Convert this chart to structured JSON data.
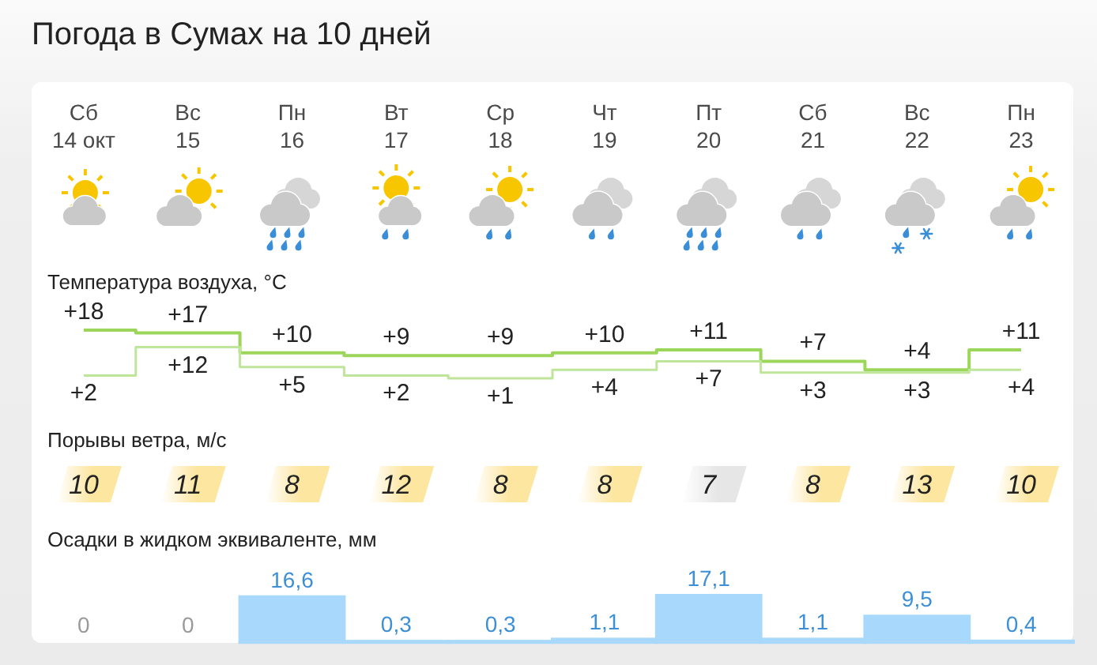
{
  "chart_data": [
    {
      "type": "step",
      "title": "Погода в Сумах на 10 дней",
      "subtitle": "Температура воздуха, °C",
      "categories": [
        "Сб\n14 окт",
        "Вс\n15",
        "Пн\n16",
        "Вт\n17",
        "Ср\n18",
        "Чт\n19",
        "Пт\n20",
        "Сб\n21",
        "Вс\n22",
        "Пн\n23"
      ],
      "tick_labels": "x",
      "series": [
        {
          "color": "#9bd65a",
          "values": [
            18,
            17,
            10,
            9,
            9,
            10,
            11,
            7,
            4,
            11
          ],
          "value_labels": [
            "+18",
            "+17",
            "+10",
            "+9",
            "+9",
            "+10",
            "+11",
            "+7",
            "+4",
            "+11"
          ]
        },
        {
          "color": "#bfe59a",
          "values": [
            2,
            12,
            5,
            2,
            1,
            4,
            7,
            3,
            3,
            4
          ],
          "value_labels": [
            "+2",
            "+12",
            "+5",
            "+2",
            "+1",
            "+4",
            "+7",
            "+3",
            "+3",
            "+4"
          ]
        }
      ]
    },
    {
      "type": "other",
      "title": "Порывы ветра, м/с",
      "values": [
        10,
        11,
        8,
        12,
        8,
        8,
        7,
        8,
        13,
        10
      ],
      "colors": [
        "#fde6a0",
        "#fde6a0",
        "#fde6a0",
        "#fde6a0",
        "#fde6a0",
        "#fde6a0",
        "#e6e6e6",
        "#fde6a0",
        "#fde6a0",
        "#fde6a0"
      ],
      "data_labels": true
    },
    {
      "type": "bar",
      "title": "Осадки в жидком эквиваленте, мм",
      "categories": [
        null,
        null,
        null,
        null,
        null,
        null,
        null,
        null,
        null,
        null
      ],
      "color": "#a8d8fc",
      "values": [
        0,
        0,
        16.6,
        0.3,
        0.3,
        1.1,
        17.1,
        1.1,
        9.5,
        0.4
      ],
      "value_labels": [
        "0",
        "0",
        "16,6",
        "0,3",
        "0,3",
        "1,1",
        "17,1",
        "1,1",
        "9,5",
        "0,4"
      ]
    }
  ]
}
